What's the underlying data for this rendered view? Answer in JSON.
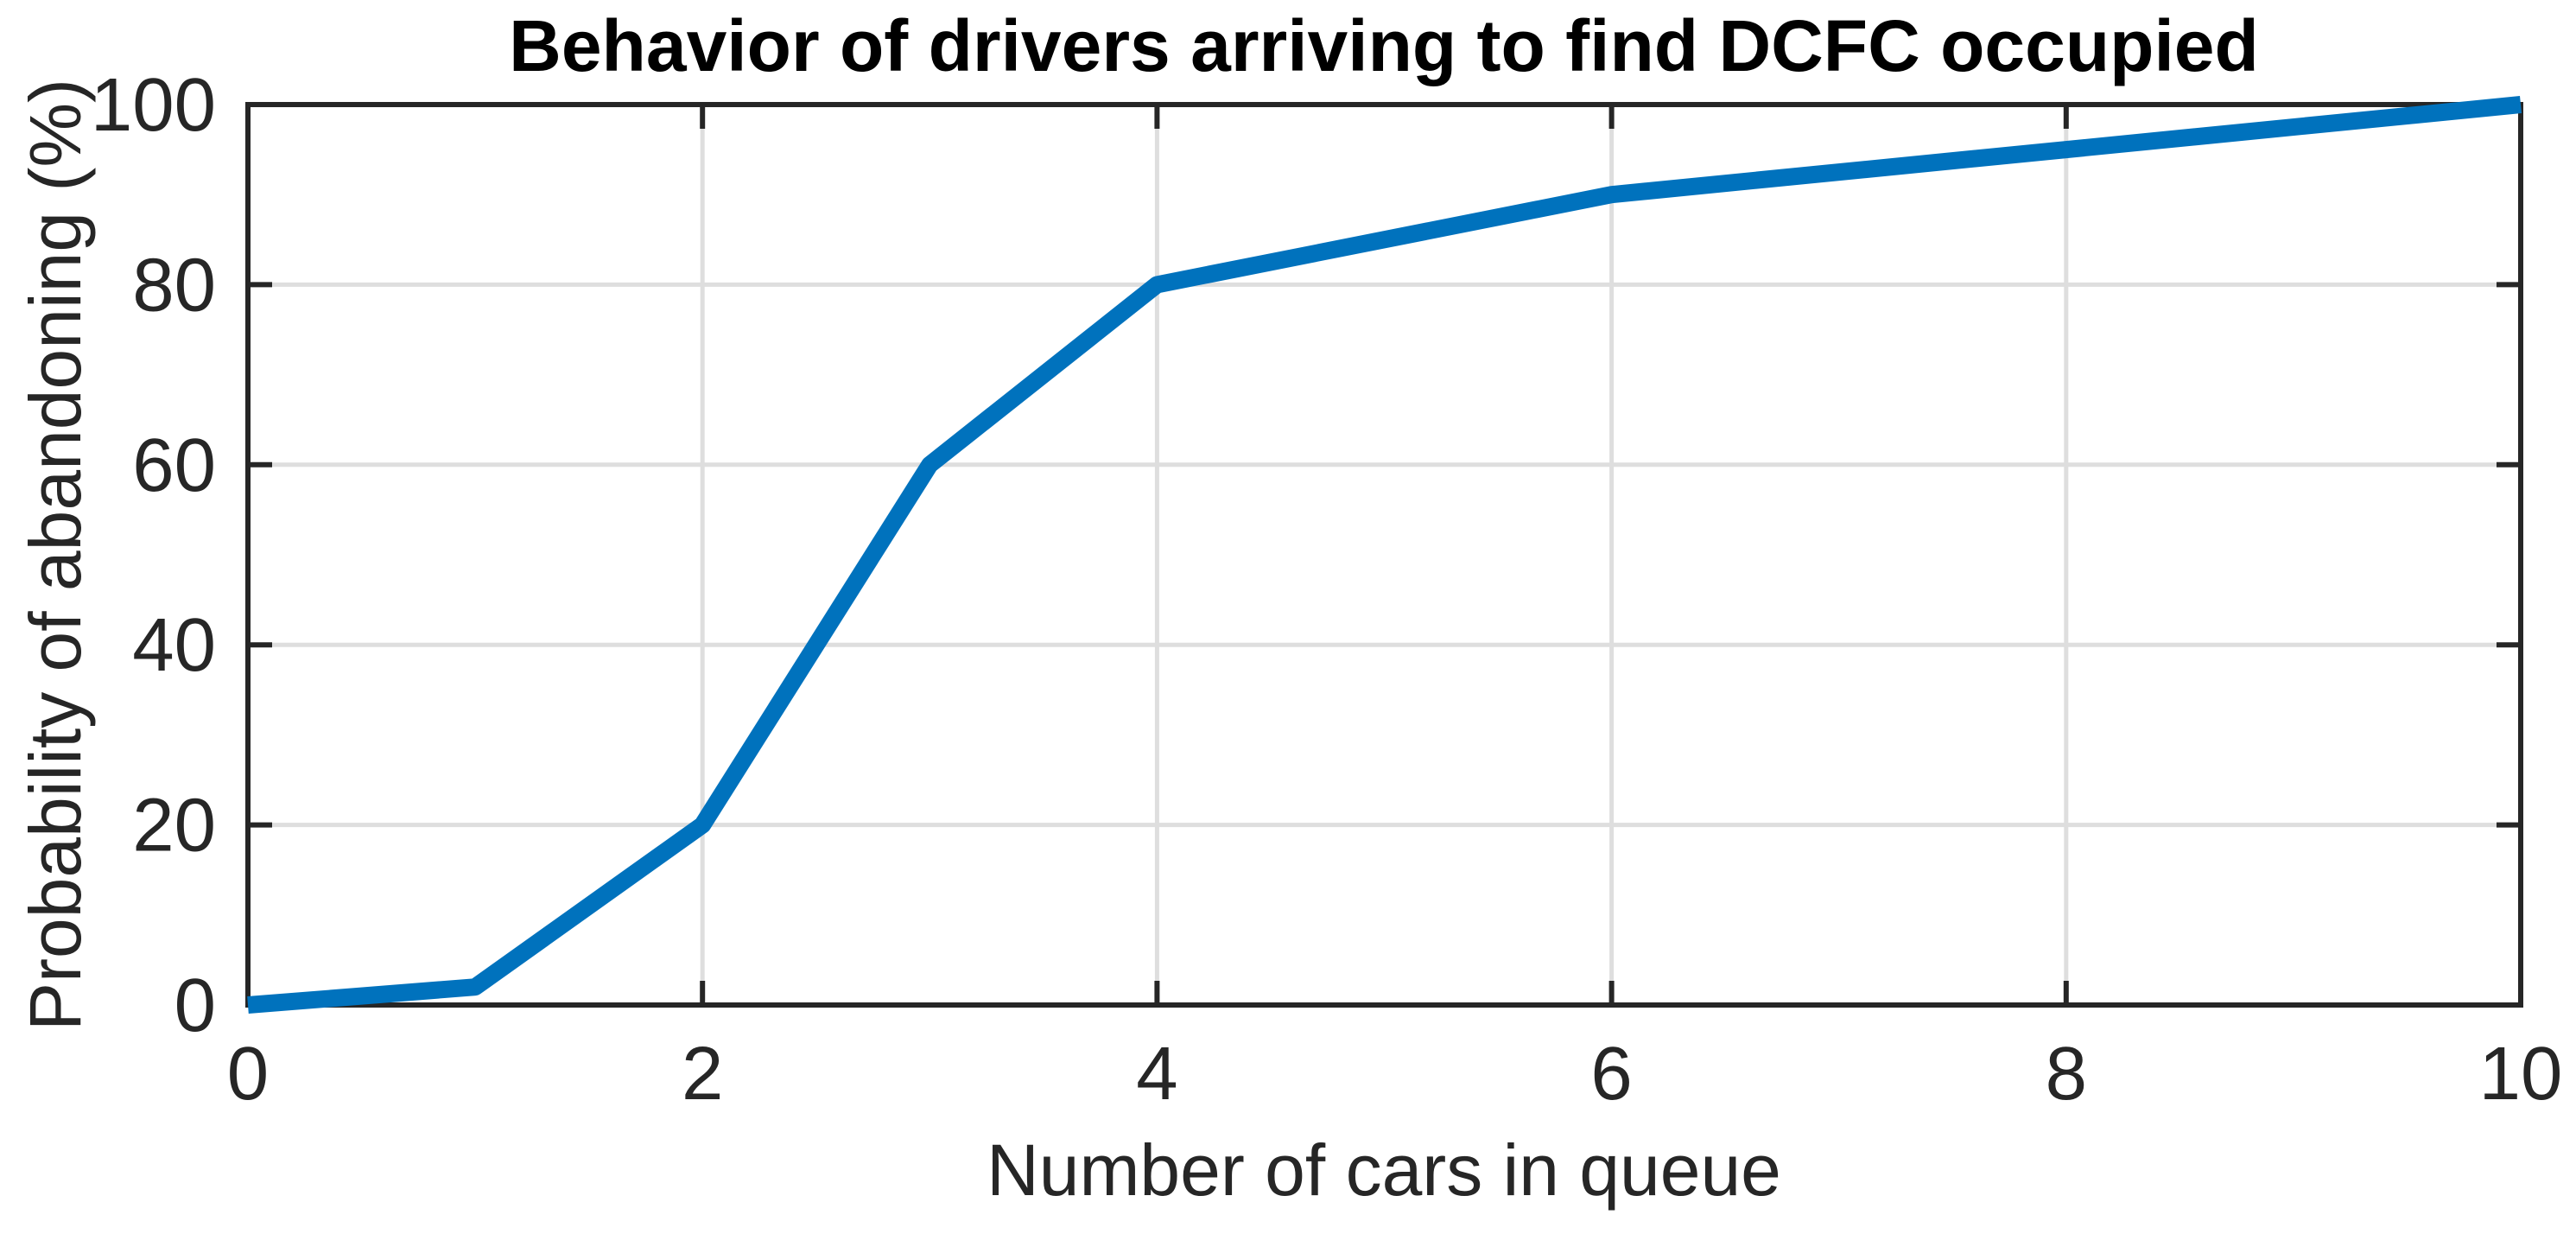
{
  "chart_data": {
    "type": "line",
    "title": "Behavior of drivers arriving to find DCFC occupied",
    "xlabel": "Number of cars in queue",
    "ylabel": "Probability of abandoning (%)",
    "x": [
      0,
      1,
      2,
      3,
      4,
      6,
      10
    ],
    "y": [
      0,
      2,
      20,
      60,
      80,
      90,
      100
    ],
    "xlim": [
      0,
      10
    ],
    "ylim": [
      0,
      100
    ],
    "xticks": [
      0,
      2,
      4,
      6,
      8,
      10
    ],
    "yticks": [
      0,
      20,
      40,
      60,
      80,
      100
    ],
    "grid": true,
    "legend": null,
    "line_color": "#0072bd",
    "axis_color": "#262626",
    "grid_color": "#dedede",
    "text_color": "#262626",
    "title_color": "#000000",
    "background_color": "#ffffff"
  }
}
